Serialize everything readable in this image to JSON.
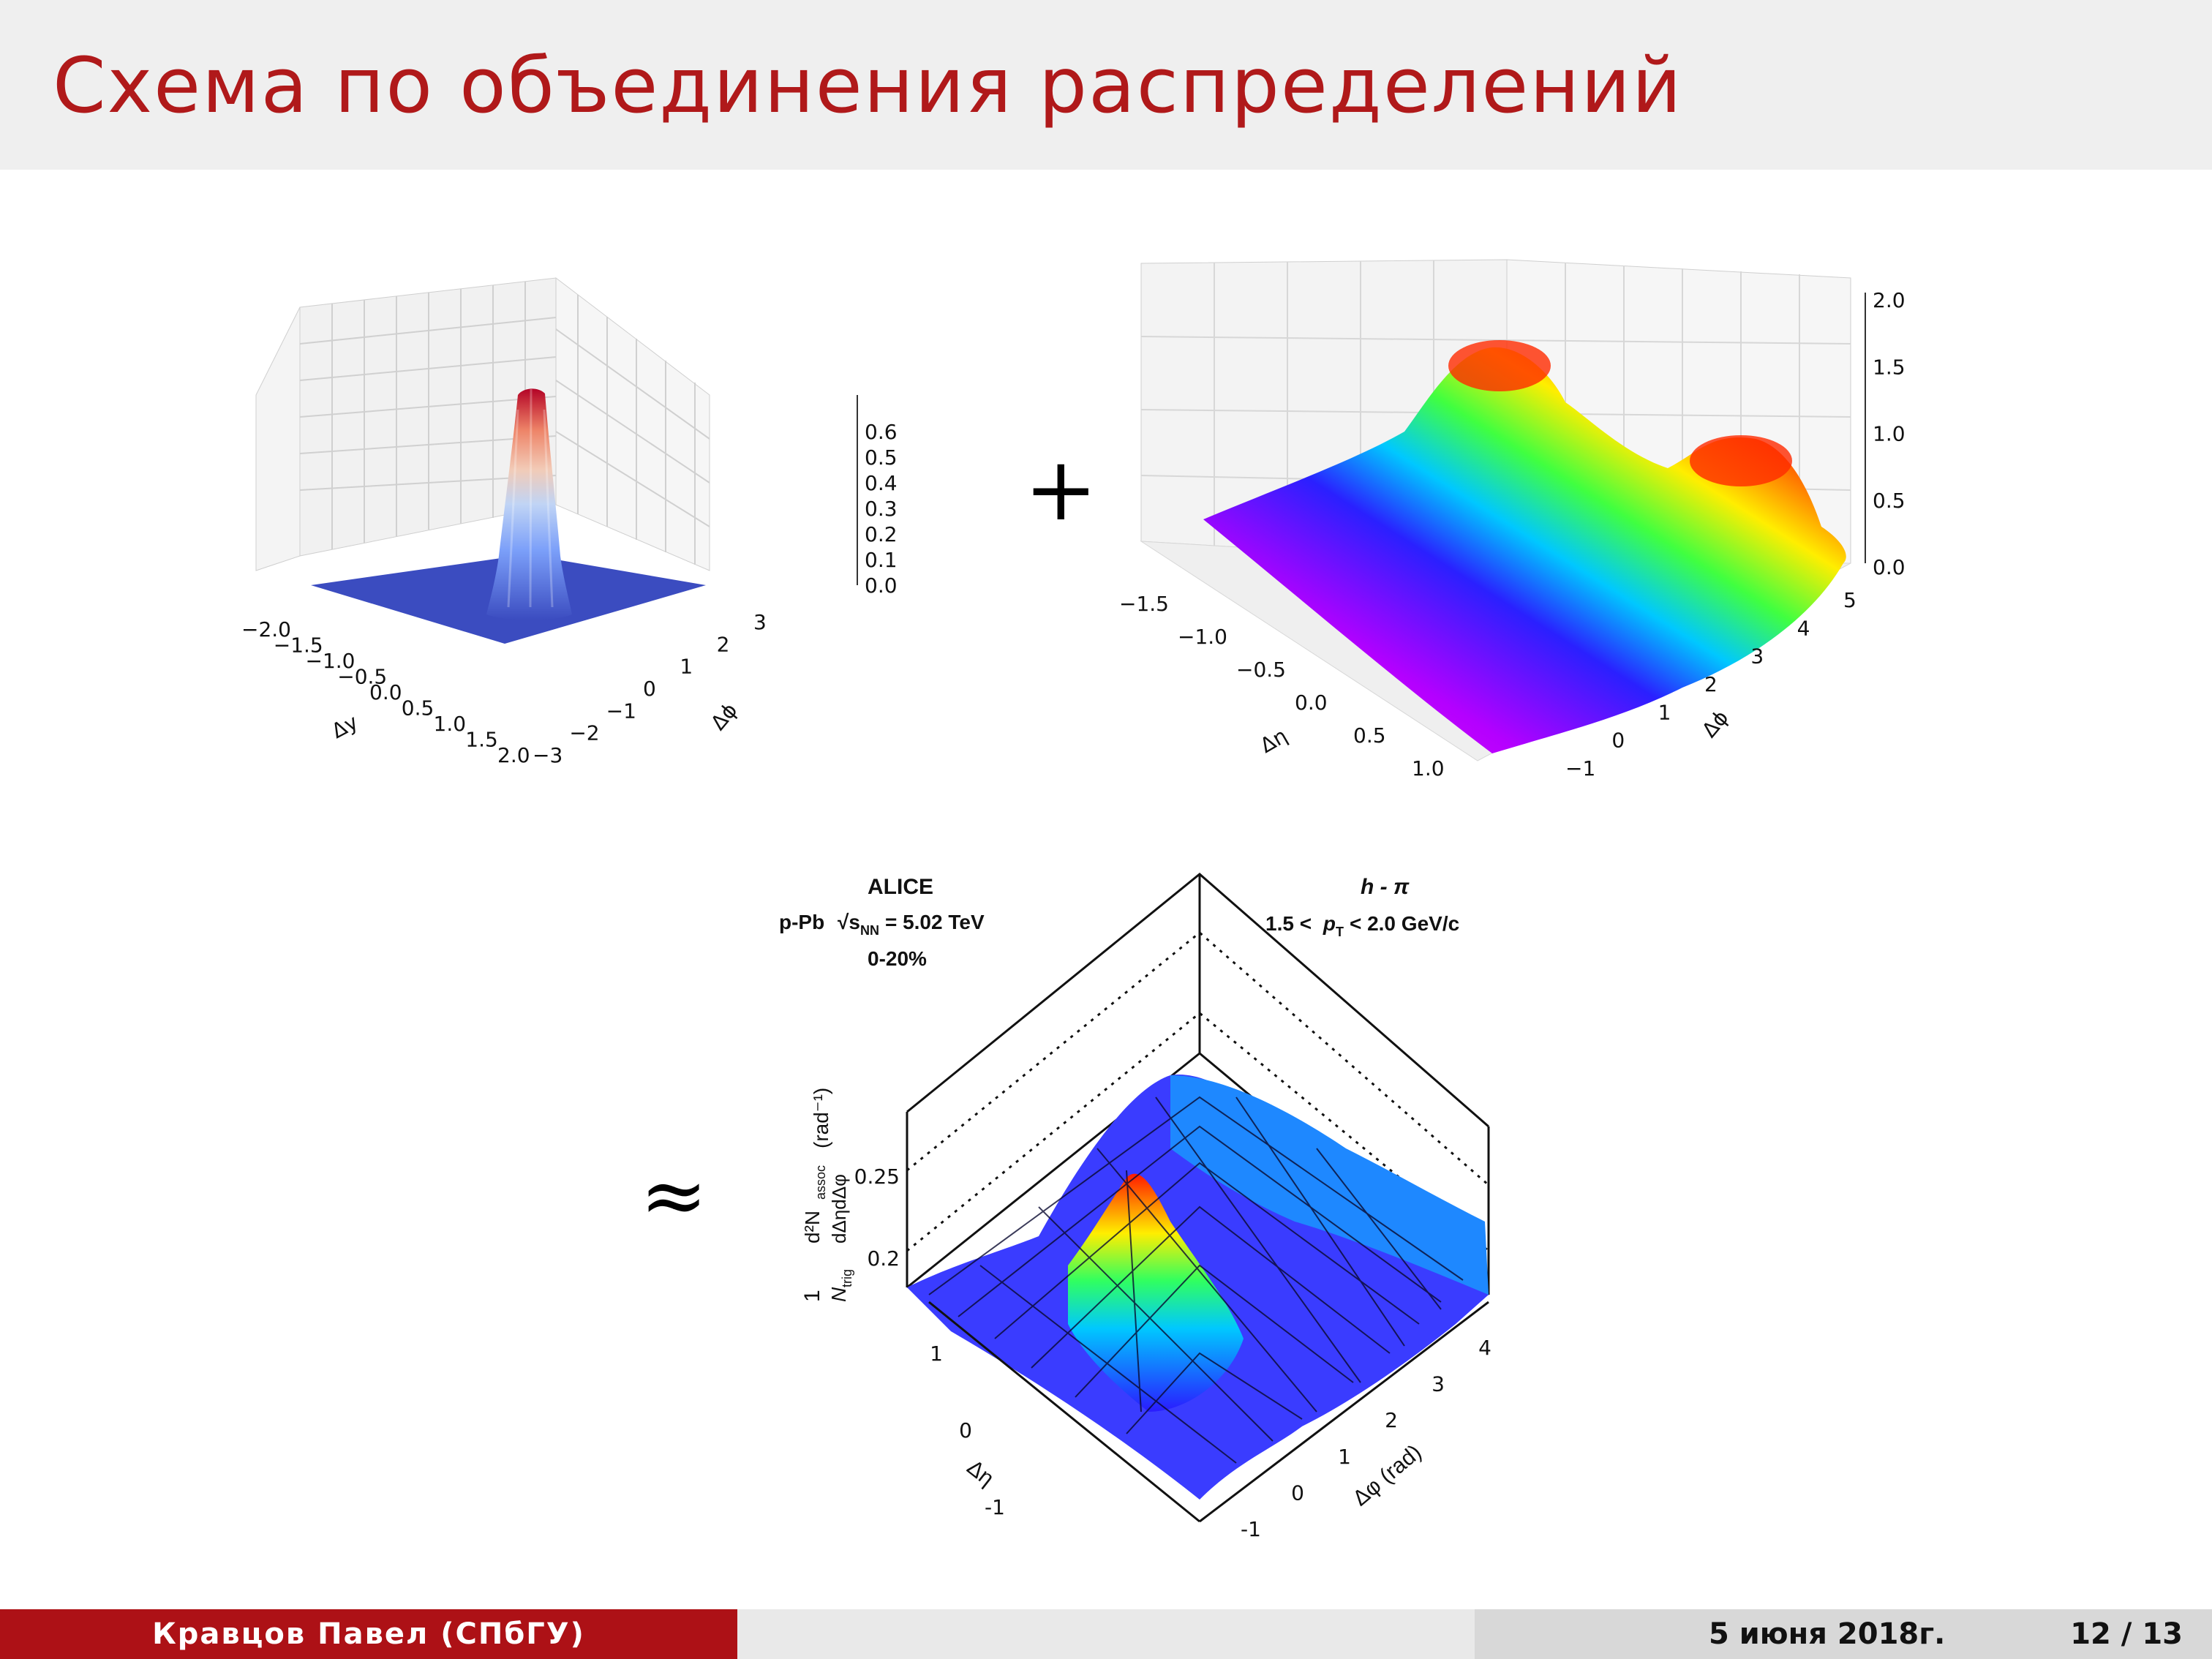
{
  "slide": {
    "title": "Схема по объединения распределений",
    "operators": {
      "plus": "+",
      "approx": "≈"
    }
  },
  "footer": {
    "author": "Кравцов Павел  (СПбГУ)",
    "date": "5 июня 2018г.",
    "page": "12 / 13"
  },
  "plot1": {
    "xlabel": "Δy",
    "ylabel": "Δϕ",
    "x_ticks": [
      "−2.0",
      "−1.5",
      "−1.0",
      "−0.5",
      "0.0",
      "0.5",
      "1.0",
      "1.5",
      "2.0"
    ],
    "y_ticks": [
      "−3",
      "−2",
      "−1",
      "0",
      "1",
      "2",
      "3"
    ],
    "z_ticks": [
      "0.0",
      "0.1",
      "0.2",
      "0.3",
      "0.4",
      "0.5",
      "0.6"
    ]
  },
  "plot2": {
    "xlabel": "Δη",
    "ylabel": "Δϕ",
    "x_ticks": [
      "−1.5",
      "−1.0",
      "−0.5",
      "0.0",
      "0.5",
      "1.0"
    ],
    "y_ticks": [
      "−1",
      "0",
      "1",
      "2",
      "3",
      "4",
      "5"
    ],
    "z_ticks": [
      "0.0",
      "0.5",
      "1.0",
      "1.5",
      "2.0"
    ]
  },
  "plot3": {
    "experiment": "ALICE",
    "system": "p-Pb",
    "energy": "s",
    "energy_sub": "NN",
    "energy_value": "= 5.02 TeV",
    "centrality": "0-20%",
    "pair": "h - π",
    "pt_lo": "1.5 <",
    "pt_var": "p",
    "pt_sub": "T",
    "pt_hi": "< 2.0 GeV/c",
    "z_ticks": [
      "0.2",
      "0.25"
    ],
    "x_ticks": [
      "1",
      "0",
      "-1"
    ],
    "y_ticks": [
      "-1",
      "0",
      "1",
      "2",
      "3",
      "4"
    ],
    "xlabel": "Δη",
    "ylabel": "Δφ (rad)",
    "zlabel_lead": "1",
    "zlabel_den": "N",
    "zlabel_den_sub": "trig",
    "zlabel_num": "d²N",
    "zlabel_num_sub": "assoc",
    "zlabel_diff": "dΔηdΔφ",
    "zlabel_unit": "(rad⁻¹)"
  }
}
